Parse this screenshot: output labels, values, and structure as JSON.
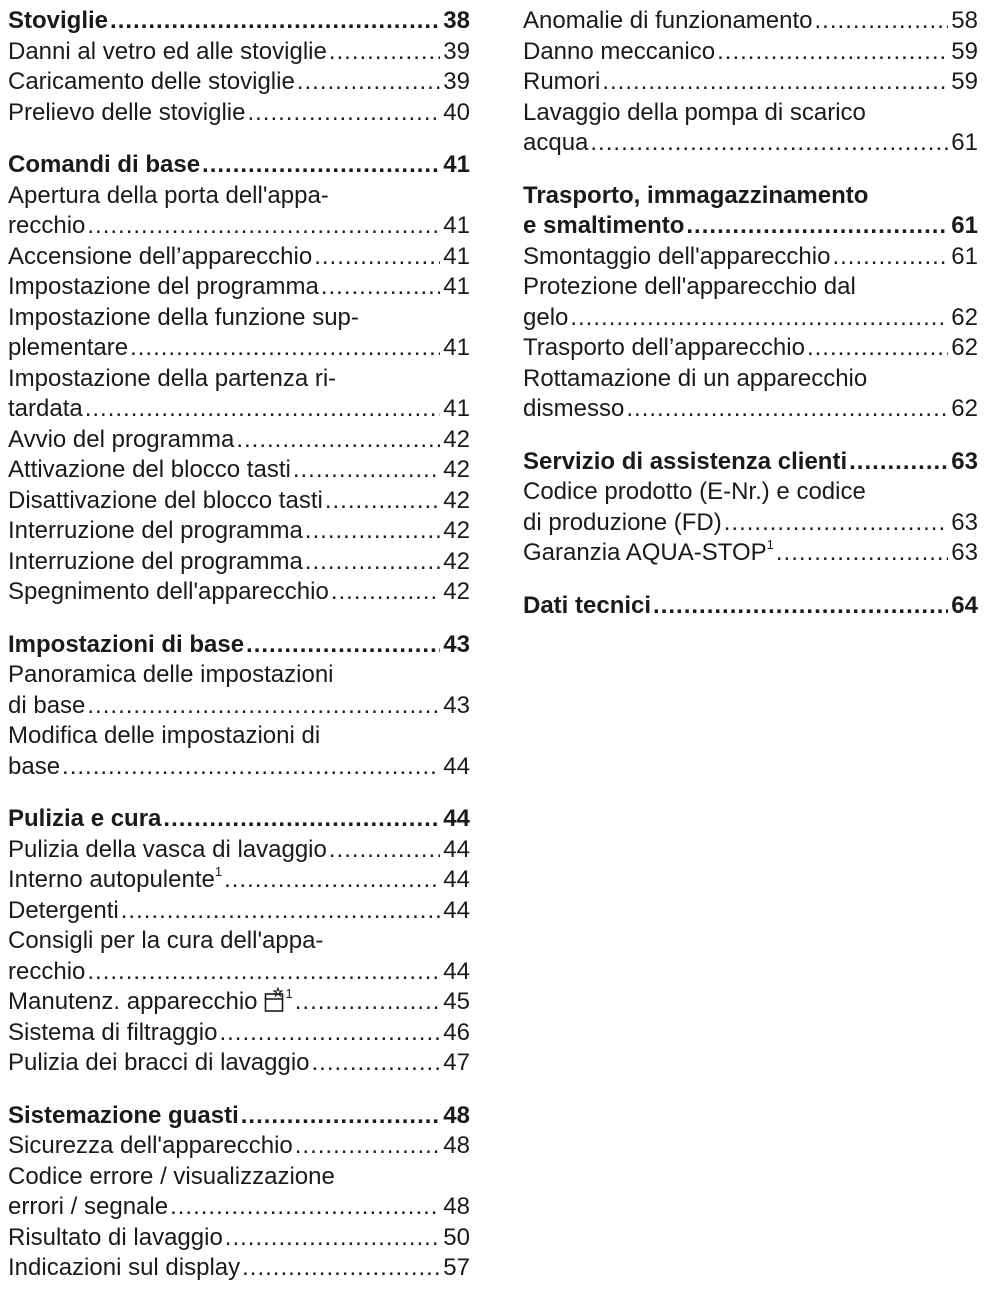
{
  "toc": {
    "left": [
      {
        "heading": {
          "text": "Stoviglie",
          "page": "38"
        },
        "items": [
          {
            "text": "Danni al vetro ed alle stoviglie",
            "page": "39"
          },
          {
            "text": "Caricamento delle stoviglie",
            "page": "39"
          },
          {
            "text": "Prelievo delle stoviglie",
            "page": "40"
          }
        ]
      },
      {
        "heading": {
          "text": "Comandi di base",
          "page": "41"
        },
        "items": [
          {
            "pre": "Apertura della porta dell'appa-",
            "text": "recchio",
            "page": "41"
          },
          {
            "text": "Accensione dell’apparecchio",
            "page": "41"
          },
          {
            "text": "Impostazione del programma",
            "page": "41"
          },
          {
            "pre": "Impostazione della funzione sup-",
            "text": "plementare",
            "page": "41"
          },
          {
            "pre": "Impostazione della partenza ri-",
            "text": "tardata",
            "page": "41"
          },
          {
            "text": "Avvio del programma",
            "page": "42"
          },
          {
            "text": "Attivazione del blocco tasti",
            "page": "42"
          },
          {
            "text": "Disattivazione del blocco tasti",
            "page": "42"
          },
          {
            "text": "Interruzione del programma",
            "page": "42"
          },
          {
            "text": "Interruzione del programma",
            "page": "42"
          },
          {
            "text": "Spegnimento dell'apparecchio",
            "page": "42"
          }
        ]
      },
      {
        "heading": {
          "text": "Impostazioni di base",
          "page": "43"
        },
        "items": [
          {
            "pre": "Panoramica delle impostazioni",
            "text": "di base",
            "page": "43"
          },
          {
            "pre": "Modifica delle impostazioni di",
            "text": "base",
            "page": "44"
          }
        ]
      },
      {
        "heading": {
          "text": "Pulizia e cura",
          "page": "44"
        },
        "items": [
          {
            "text": "Pulizia della vasca di lavaggio",
            "page": "44"
          },
          {
            "text": "Interno autopulente",
            "sup": "1",
            "page": "44"
          },
          {
            "text": "Detergenti",
            "page": "44"
          },
          {
            "pre": "Consigli per la cura dell'appa-",
            "text": "recchio",
            "page": "44"
          },
          {
            "text": "Manutenz. apparecchio",
            "icon": "machine-care-icon",
            "sup": "1",
            "page": "45"
          },
          {
            "text": "Sistema di filtraggio",
            "page": "46"
          },
          {
            "text": "Pulizia dei bracci di lavaggio",
            "page": "47"
          }
        ]
      },
      {
        "heading": {
          "text": "Sistemazione guasti",
          "page": "48"
        },
        "items": [
          {
            "text": "Sicurezza dell'apparecchio",
            "page": "48"
          },
          {
            "pre": "Codice errore / visualizzazione",
            "text": "errori / segnale",
            "page": "48"
          },
          {
            "text": "Risultato di lavaggio",
            "page": "50"
          },
          {
            "text": "Indicazioni sul display",
            "page": "57"
          }
        ]
      }
    ],
    "right": [
      {
        "heading": null,
        "items": [
          {
            "text": "Anomalie di funzionamento",
            "page": "58"
          },
          {
            "text": "Danno meccanico",
            "page": "59"
          },
          {
            "text": "Rumori",
            "page": "59"
          },
          {
            "pre": "Lavaggio della pompa di scarico",
            "text": "acqua",
            "page": "61"
          }
        ]
      },
      {
        "heading": {
          "pre": "Trasporto, immagazzinamento",
          "text": "e smaltimento",
          "page": "61"
        },
        "items": [
          {
            "text": "Smontaggio dell'apparecchio",
            "page": "61"
          },
          {
            "pre": "Protezione dell'apparecchio dal",
            "text": "gelo",
            "page": "62"
          },
          {
            "text": "Trasporto dell’apparecchio",
            "page": "62"
          },
          {
            "pre": "Rottamazione di un apparecchio",
            "text": "dismesso",
            "page": "62"
          }
        ]
      },
      {
        "heading": {
          "text": "Servizio di assistenza clienti",
          "page": "63"
        },
        "items": [
          {
            "pre": "Codice prodotto (E-Nr.) e codice",
            "text": "di produzione (FD)",
            "page": "63"
          },
          {
            "text": "Garanzia AQUA-STOP",
            "sup": "1",
            "page": "63"
          }
        ]
      },
      {
        "heading": {
          "text": "Dati tecnici",
          "page": "64"
        },
        "items": []
      }
    ]
  }
}
